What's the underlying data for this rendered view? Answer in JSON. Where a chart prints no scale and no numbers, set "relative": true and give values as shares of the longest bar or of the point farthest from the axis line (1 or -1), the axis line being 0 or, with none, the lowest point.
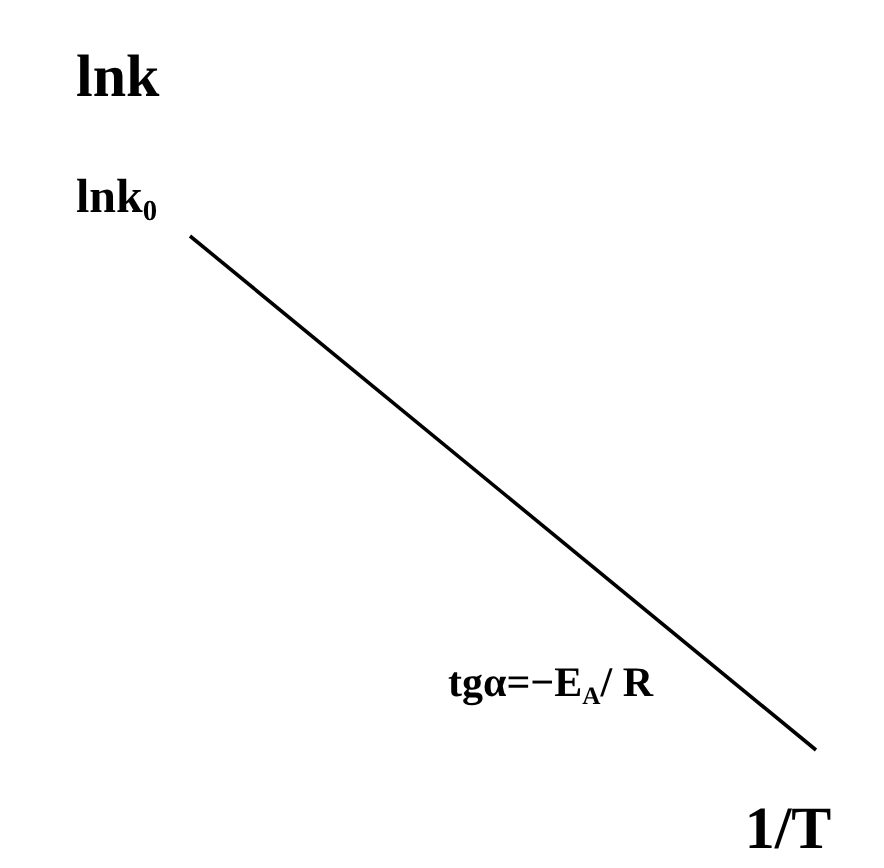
{
  "chart_data": {
    "type": "line",
    "relative": true,
    "xlabel": "1/T",
    "ylabel": "lnk",
    "categories": [
      null,
      null
    ],
    "series": [
      {
        "color": "#000000",
        "values": [
          1,
          0
        ]
      }
    ],
    "annotations": [
      "lnk$_{0}$",
      "tgα=−E$_{A}$/ R"
    ],
    "marker": "none",
    "line_style": "solid",
    "grid": false
  }
}
